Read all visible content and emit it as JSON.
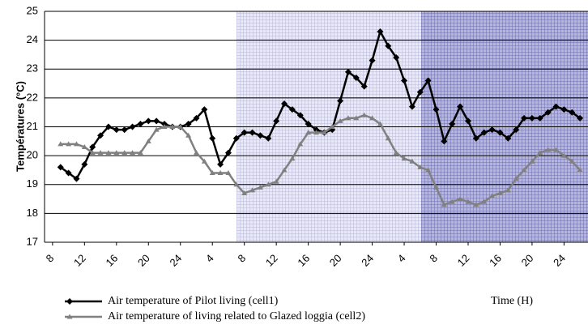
{
  "chart_data": {
    "type": "line",
    "y_label": "Températures (°C)",
    "x_label": "Time (H)",
    "x": [
      1,
      2,
      3,
      4,
      5,
      6,
      7,
      8,
      9,
      10,
      11,
      12,
      13,
      14,
      15,
      16,
      17,
      18,
      19,
      20,
      21,
      22,
      23,
      24,
      25,
      26,
      27,
      28,
      29,
      30,
      31,
      32,
      33,
      34,
      35,
      36,
      37,
      38,
      39,
      40,
      41,
      42,
      43,
      44,
      45,
      46,
      47,
      48,
      49,
      50,
      51,
      52,
      53,
      54,
      55,
      56,
      57,
      58,
      59,
      60,
      61,
      62,
      63,
      64,
      65,
      66
    ],
    "series": [
      {
        "name": "Air temperature of Pilot living (cell1)",
        "color": "#000000",
        "marker": "diamond",
        "values": [
          19.6,
          19.4,
          19.2,
          19.7,
          20.3,
          20.7,
          21.0,
          20.9,
          20.9,
          21.0,
          21.1,
          21.2,
          21.2,
          21.1,
          21.0,
          21.0,
          21.1,
          21.3,
          21.6,
          20.6,
          19.7,
          20.1,
          20.6,
          20.8,
          20.8,
          20.7,
          20.6,
          21.2,
          21.8,
          21.6,
          21.4,
          21.1,
          20.9,
          20.8,
          20.9,
          21.9,
          22.9,
          22.7,
          22.4,
          23.3,
          24.3,
          23.8,
          23.4,
          22.6,
          21.7,
          22.2,
          22.6,
          21.6,
          20.5,
          21.1,
          21.7,
          21.2,
          20.6,
          20.8,
          20.9,
          20.8,
          20.6,
          20.9,
          21.3,
          21.3,
          21.3,
          21.5,
          21.7,
          21.6,
          21.5,
          21.3
        ]
      },
      {
        "name": "Air temperature of living related to Glazed loggia (cell2)",
        "color": "#808080",
        "marker": "triangle",
        "values": [
          20.4,
          20.4,
          20.4,
          20.3,
          20.1,
          20.1,
          20.1,
          20.1,
          20.1,
          20.1,
          20.1,
          20.5,
          20.9,
          21.0,
          21.0,
          21.0,
          20.7,
          20.1,
          19.8,
          19.4,
          19.4,
          19.4,
          19.0,
          18.7,
          18.8,
          18.9,
          19.0,
          19.1,
          19.5,
          19.9,
          20.4,
          20.8,
          20.8,
          20.8,
          21.0,
          21.2,
          21.3,
          21.3,
          21.4,
          21.3,
          21.1,
          20.6,
          20.1,
          19.9,
          19.8,
          19.6,
          19.5,
          18.9,
          18.3,
          18.4,
          18.5,
          18.4,
          18.3,
          18.4,
          18.6,
          18.7,
          18.8,
          19.2,
          19.5,
          19.8,
          20.1,
          20.2,
          20.2,
          20.0,
          19.8,
          19.5
        ]
      }
    ],
    "xlim": [
      -1,
      67
    ],
    "xticks": [
      {
        "value": 0,
        "label": "8"
      },
      {
        "value": 4,
        "label": "12"
      },
      {
        "value": 8,
        "label": "16"
      },
      {
        "value": 12,
        "label": "20"
      },
      {
        "value": 16,
        "label": "24"
      },
      {
        "value": 20,
        "label": "4"
      },
      {
        "value": 24,
        "label": "8"
      },
      {
        "value": 28,
        "label": "12"
      },
      {
        "value": 32,
        "label": "16"
      },
      {
        "value": 36,
        "label": "20"
      },
      {
        "value": 40,
        "label": "24"
      },
      {
        "value": 44,
        "label": "4"
      },
      {
        "value": 48,
        "label": "8"
      },
      {
        "value": 52,
        "label": "12"
      },
      {
        "value": 56,
        "label": "16"
      },
      {
        "value": 60,
        "label": "20"
      },
      {
        "value": 64,
        "label": "24"
      },
      {
        "value": 68,
        "label": "4"
      }
    ],
    "ylim": [
      17,
      25
    ],
    "yticks": [
      17,
      18,
      19,
      20,
      21,
      22,
      23,
      24,
      25
    ],
    "grid": true
  }
}
